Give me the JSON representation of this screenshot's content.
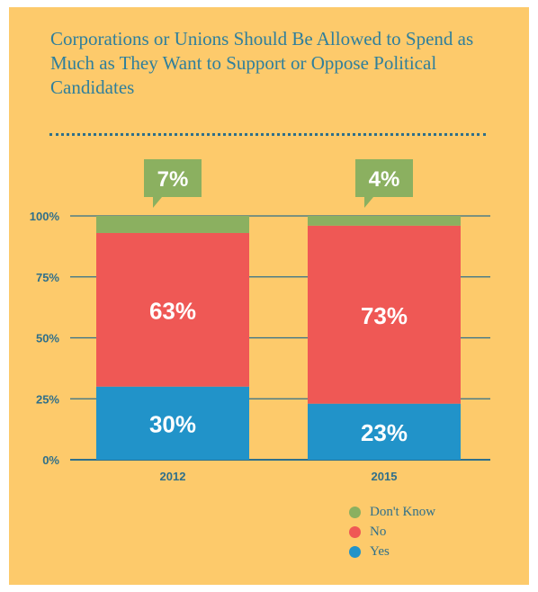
{
  "chart_data": {
    "type": "bar",
    "stacked": true,
    "title": "Corporations or Unions Should Be Allowed to Spend as Much as They Want to Support or Oppose Political Candidates",
    "categories": [
      "2012",
      "2015"
    ],
    "series": [
      {
        "name": "Yes",
        "values": [
          30,
          23
        ],
        "labels": [
          "30%",
          "23%"
        ],
        "color": "#2193c9"
      },
      {
        "name": "No",
        "values": [
          63,
          73
        ],
        "labels": [
          "63%",
          "73%"
        ],
        "color": "#ef5855"
      },
      {
        "name": "Don't Know",
        "values": [
          7,
          4
        ],
        "labels": [
          "7%",
          "4%"
        ],
        "color": "#8bb060"
      }
    ],
    "yticks": [
      "0%",
      "25%",
      "50%",
      "75%",
      "100%"
    ],
    "ylim": [
      0,
      100
    ],
    "grid": true,
    "legend_position": "bottom-right",
    "legend": [
      {
        "name": "Don't Know",
        "color": "#8bb060"
      },
      {
        "name": "No",
        "color": "#ef5855"
      },
      {
        "name": "Yes",
        "color": "#2193c9"
      }
    ]
  }
}
